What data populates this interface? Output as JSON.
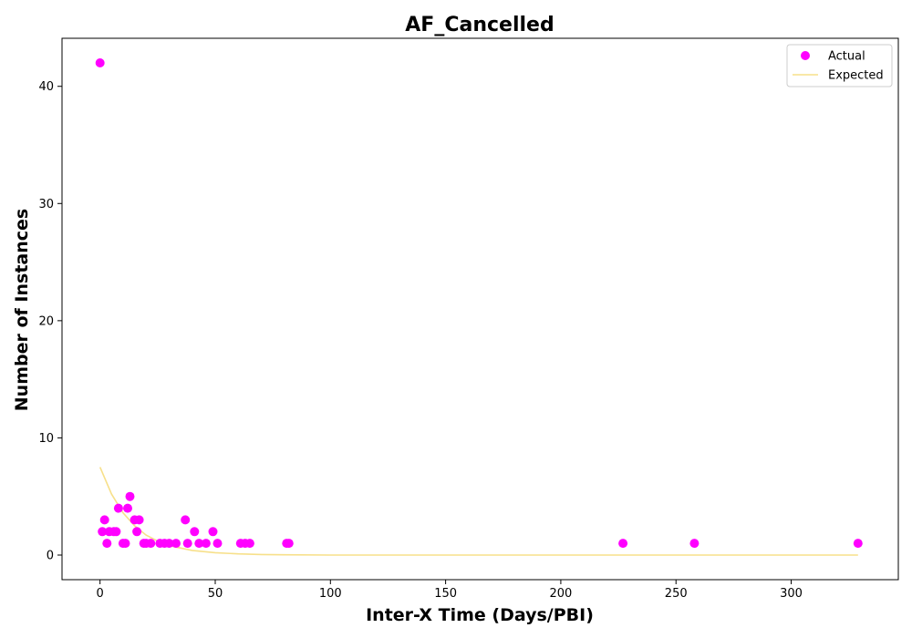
{
  "chart_data": {
    "type": "scatter",
    "title": "AF_Cancelled",
    "xlabel": "Inter-X Time (Days/PBI)",
    "ylabel": "Number of Instances",
    "xlim": [
      -16.5,
      346.5
    ],
    "ylim": [
      -2.1,
      44.1
    ],
    "xticks": [
      0,
      50,
      100,
      150,
      200,
      250,
      300
    ],
    "yticks": [
      0,
      10,
      20,
      30,
      40
    ],
    "grid": false,
    "legend": "top-right",
    "series": [
      {
        "name": "Actual",
        "kind": "scatter",
        "color": "#ff00ff",
        "points": [
          [
            0,
            42
          ],
          [
            1,
            2
          ],
          [
            2,
            3
          ],
          [
            3,
            1
          ],
          [
            4,
            2
          ],
          [
            6,
            2
          ],
          [
            7,
            2
          ],
          [
            8,
            4
          ],
          [
            10,
            1
          ],
          [
            11,
            1
          ],
          [
            12,
            4
          ],
          [
            13,
            5
          ],
          [
            15,
            3
          ],
          [
            16,
            2
          ],
          [
            17,
            3
          ],
          [
            19,
            1
          ],
          [
            20,
            1
          ],
          [
            22,
            1
          ],
          [
            26,
            1
          ],
          [
            28,
            1
          ],
          [
            30,
            1
          ],
          [
            33,
            1
          ],
          [
            37,
            3
          ],
          [
            38,
            1
          ],
          [
            41,
            2
          ],
          [
            43,
            1
          ],
          [
            46,
            1
          ],
          [
            49,
            2
          ],
          [
            51,
            1
          ],
          [
            61,
            1
          ],
          [
            63,
            1
          ],
          [
            65,
            1
          ],
          [
            81,
            1
          ],
          [
            82,
            1
          ],
          [
            227,
            1
          ],
          [
            258,
            1
          ],
          [
            329,
            1
          ]
        ]
      },
      {
        "name": "Expected",
        "kind": "line",
        "color": "#f7e08a",
        "points": [
          [
            0,
            7.5
          ],
          [
            5,
            5.2
          ],
          [
            10,
            3.6
          ],
          [
            15,
            2.5
          ],
          [
            20,
            1.7
          ],
          [
            25,
            1.2
          ],
          [
            30,
            0.8
          ],
          [
            40,
            0.4
          ],
          [
            50,
            0.2
          ],
          [
            60,
            0.1
          ],
          [
            70,
            0.05
          ],
          [
            80,
            0.02
          ],
          [
            100,
            0.0
          ],
          [
            150,
            0.0
          ],
          [
            200,
            0.0
          ],
          [
            250,
            0.0
          ],
          [
            300,
            0.0
          ],
          [
            329,
            0.0
          ]
        ]
      }
    ]
  }
}
